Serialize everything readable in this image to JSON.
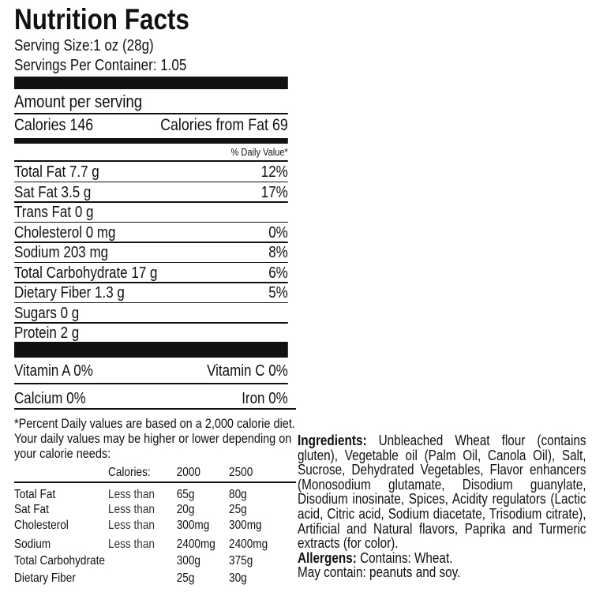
{
  "title": "Nutrition Facts",
  "serving_size": "Serving Size:1 oz (28g)",
  "servings_per_container": "Servings Per Container: 1.05",
  "amount_per_serving": "Amount per serving",
  "calories": "Calories 146",
  "calories_from_fat": "Calories from Fat 69",
  "daily_value_header": "% Daily Value*",
  "nutrients": [
    {
      "label": "Total Fat  7.7 g",
      "dv": "12%"
    },
    {
      "label": "Sat Fat 3.5 g",
      "dv": "17%"
    },
    {
      "label": "Trans Fat 0 g",
      "dv": ""
    },
    {
      "label": "Cholesterol 0 mg",
      "dv": "0%"
    },
    {
      "label": "Sodium 203 mg",
      "dv": "8%"
    },
    {
      "label": "Total Carbohydrate 17 g",
      "dv": "6%"
    },
    {
      "label": "Dietary Fiber 1.3 g",
      "dv": "5%"
    },
    {
      "label": "Sugars 0 g",
      "dv": ""
    },
    {
      "label": "Protein 2 g",
      "dv": ""
    }
  ],
  "vitamin_a": "Vitamin A 0%",
  "vitamin_c": "Vitamin C 0%",
  "calcium": "Calcium 0%",
  "iron": "Iron 0%",
  "footnote": "*Percent Daily values are based on a 2,000 calorie diet. Your daily values may be higher or lower depending on your calorie needs:",
  "dv_table": {
    "header": [
      "Calories:",
      "2000",
      "2500"
    ],
    "rows": [
      {
        "name": "Total Fat",
        "qual": "Less than",
        "v2000": "65g",
        "v2500": "80g"
      },
      {
        "name": "Sat Fat",
        "qual": "Less than",
        "v2000": "20g",
        "v2500": "25g"
      },
      {
        "name": "Cholesterol",
        "qual": "Less than",
        "v2000": "300mg",
        "v2500": "300mg"
      },
      {
        "name": "Sodium",
        "qual": "Less than",
        "v2000": "2400mg",
        "v2500": "2400mg"
      },
      {
        "name": "Total Carbohydrate",
        "qual": "",
        "v2000": "300g",
        "v2500": "375g"
      },
      {
        "name": "Dietary Fiber",
        "qual": "",
        "v2000": "25g",
        "v2500": "30g"
      }
    ]
  },
  "ingredients_label": "Ingredients:",
  "ingredients": "Unbleached Wheat flour (contains gluten), Vegetable oil (Palm Oil, Canola Oil), Salt, Sucrose, Dehydrated Vegetables, Flavor enhancers (Monosodium glutamate, Disodium guanylate, Disodium inosinate, Spices, Acidity regulators (Lactic acid, Citric acid, Sodium diacetate, Trisodium citrate), Artificial and Natural flavors, Paprika and Turmeric extracts (for color).",
  "allergens_label": "Allergens:",
  "allergens": "Contains: Wheat.",
  "may_contain": "May contain: peanuts and soy."
}
